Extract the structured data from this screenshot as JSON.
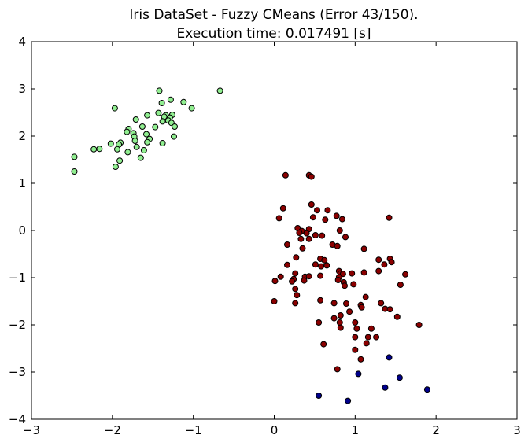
{
  "chart_data": {
    "type": "scatter",
    "title": "Iris DataSet - Fuzzy CMeans (Error 43/150).",
    "subtitle": "Execution time: 0.017491 [s]",
    "xlabel": "",
    "ylabel": "",
    "xlim": [
      -3,
      3
    ],
    "ylim": [
      -4,
      4
    ],
    "x_ticks": [
      "−3",
      "−2",
      "−1",
      "0",
      "1",
      "2",
      "3"
    ],
    "y_ticks": [
      "4",
      "3",
      "2",
      "1",
      "0",
      "−1",
      "−2",
      "−3",
      "−4"
    ],
    "grid": false,
    "legend": "none",
    "series": [
      {
        "color": "#90ee90",
        "points": [
          [
            -1.42,
            2.96
          ],
          [
            -0.67,
            2.96
          ],
          [
            -1.28,
            2.77
          ],
          [
            -1.12,
            2.72
          ],
          [
            -1.39,
            2.7
          ],
          [
            -1.97,
            2.59
          ],
          [
            -1.02,
            2.59
          ],
          [
            -1.43,
            2.49
          ],
          [
            -1.34,
            2.44
          ],
          [
            -1.57,
            2.44
          ],
          [
            -1.36,
            2.41
          ],
          [
            -1.26,
            2.45
          ],
          [
            -1.29,
            2.39
          ],
          [
            -1.31,
            2.33
          ],
          [
            -1.38,
            2.31
          ],
          [
            -1.71,
            2.35
          ],
          [
            -1.27,
            2.28
          ],
          [
            -1.23,
            2.2
          ],
          [
            -1.47,
            2.19
          ],
          [
            -1.63,
            2.2
          ],
          [
            -1.8,
            2.15
          ],
          [
            -1.82,
            2.09
          ],
          [
            -1.74,
            2.06
          ],
          [
            -1.58,
            2.04
          ],
          [
            -1.73,
            1.99
          ],
          [
            -1.24,
            1.99
          ],
          [
            -1.54,
            1.94
          ],
          [
            -1.72,
            1.9
          ],
          [
            -1.9,
            1.86
          ],
          [
            -1.92,
            1.82
          ],
          [
            -1.57,
            1.87
          ],
          [
            -1.38,
            1.85
          ],
          [
            -2.02,
            1.84
          ],
          [
            -1.7,
            1.77
          ],
          [
            -2.16,
            1.73
          ],
          [
            -2.23,
            1.72
          ],
          [
            -1.94,
            1.72
          ],
          [
            -1.61,
            1.7
          ],
          [
            -1.81,
            1.66
          ],
          [
            -1.65,
            1.54
          ],
          [
            -2.47,
            1.56
          ],
          [
            -1.91,
            1.48
          ],
          [
            -1.96,
            1.35
          ],
          [
            -2.47,
            1.25
          ]
        ]
      },
      {
        "color": "#8b0000",
        "points": [
          [
            0.14,
            1.17
          ],
          [
            0.43,
            1.17
          ],
          [
            0.46,
            1.14
          ],
          [
            0.11,
            0.47
          ],
          [
            0.46,
            0.55
          ],
          [
            0.53,
            0.43
          ],
          [
            0.66,
            0.43
          ],
          [
            0.77,
            0.31
          ],
          [
            1.42,
            0.27
          ],
          [
            0.06,
            0.26
          ],
          [
            0.48,
            0.28
          ],
          [
            0.63,
            0.23
          ],
          [
            0.84,
            0.24
          ],
          [
            0.29,
            0.05
          ],
          [
            0.34,
            -0.01
          ],
          [
            0.43,
            0.03
          ],
          [
            0.81,
            0.0
          ],
          [
            0.4,
            -0.06
          ],
          [
            0.31,
            -0.05
          ],
          [
            0.51,
            -0.1
          ],
          [
            0.59,
            -0.11
          ],
          [
            0.33,
            -0.18
          ],
          [
            0.88,
            -0.14
          ],
          [
            0.43,
            -0.18
          ],
          [
            0.16,
            -0.3
          ],
          [
            0.35,
            -0.38
          ],
          [
            0.72,
            -0.3
          ],
          [
            0.78,
            -0.33
          ],
          [
            1.11,
            -0.39
          ],
          [
            0.27,
            -0.57
          ],
          [
            0.57,
            -0.6
          ],
          [
            0.62,
            -0.63
          ],
          [
            1.29,
            -0.62
          ],
          [
            1.43,
            -0.6
          ],
          [
            1.45,
            -0.67
          ],
          [
            0.16,
            -0.73
          ],
          [
            0.51,
            -0.72
          ],
          [
            0.58,
            -0.76
          ],
          [
            0.65,
            -0.74
          ],
          [
            1.36,
            -0.72
          ],
          [
            0.08,
            -0.98
          ],
          [
            0.26,
            -0.91
          ],
          [
            0.38,
            -0.98
          ],
          [
            0.43,
            -0.97
          ],
          [
            0.57,
            -0.96
          ],
          [
            0.8,
            -0.86
          ],
          [
            0.82,
            -0.91
          ],
          [
            0.85,
            -0.92
          ],
          [
            0.96,
            -0.91
          ],
          [
            1.11,
            -0.89
          ],
          [
            1.29,
            -0.86
          ],
          [
            1.62,
            -0.93
          ],
          [
            0.01,
            -1.07
          ],
          [
            0.24,
            -1.03
          ],
          [
            0.22,
            -1.08
          ],
          [
            0.37,
            -1.06
          ],
          [
            0.8,
            -0.99
          ],
          [
            0.79,
            -1.05
          ],
          [
            0.86,
            -1.1
          ],
          [
            0.98,
            -1.14
          ],
          [
            0.87,
            -1.17
          ],
          [
            1.56,
            -1.15
          ],
          [
            0.26,
            -1.24
          ],
          [
            1.13,
            -1.41
          ],
          [
            0.28,
            -1.37
          ],
          [
            0.57,
            -1.48
          ],
          [
            0.74,
            -1.54
          ],
          [
            0.89,
            -1.55
          ],
          [
            1.07,
            -1.58
          ],
          [
            1.08,
            -1.63
          ],
          [
            1.32,
            -1.54
          ],
          [
            1.37,
            -1.66
          ],
          [
            1.43,
            -1.67
          ],
          [
            0.0,
            -1.5
          ],
          [
            0.26,
            -1.54
          ],
          [
            0.93,
            -1.72
          ],
          [
            1.52,
            -1.83
          ],
          [
            0.82,
            -1.8
          ],
          [
            0.74,
            -1.86
          ],
          [
            1.79,
            -2.0
          ],
          [
            0.55,
            -1.95
          ],
          [
            0.81,
            -1.95
          ],
          [
            1.0,
            -1.95
          ],
          [
            0.82,
            -2.06
          ],
          [
            1.02,
            -2.08
          ],
          [
            1.2,
            -2.08
          ],
          [
            1.16,
            -2.26
          ],
          [
            1.0,
            -2.26
          ],
          [
            1.26,
            -2.26
          ],
          [
            1.14,
            -2.39
          ],
          [
            0.61,
            -2.41
          ],
          [
            1.0,
            -2.53
          ],
          [
            1.07,
            -2.73
          ],
          [
            0.78,
            -2.94
          ]
        ]
      },
      {
        "color": "#00008b",
        "points": [
          [
            1.42,
            -2.69
          ],
          [
            1.04,
            -3.04
          ],
          [
            1.55,
            -3.12
          ],
          [
            1.37,
            -3.33
          ],
          [
            1.89,
            -3.37
          ],
          [
            0.55,
            -3.5
          ],
          [
            0.91,
            -3.61
          ]
        ]
      }
    ]
  }
}
